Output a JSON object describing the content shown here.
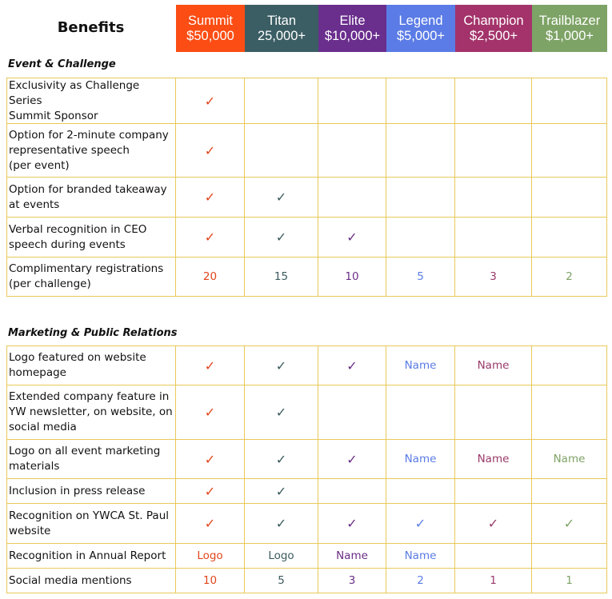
{
  "header": {
    "benefits_label": "Benefits",
    "tiers": [
      {
        "name": "Summit",
        "amount": "$50,000",
        "color": "#fb4d14"
      },
      {
        "name": "Titan",
        "amount": "25,000+",
        "color": "#3b5e64"
      },
      {
        "name": "Elite",
        "amount": "$10,000+",
        "color": "#6a2e8d"
      },
      {
        "name": "Legend",
        "amount": "$5,000+",
        "color": "#5b7ce6"
      },
      {
        "name": "Champion",
        "amount": "$2,500+",
        "color": "#a3336a"
      },
      {
        "name": "Trailblazer",
        "amount": "$1,000+",
        "color": "#7ea366"
      }
    ]
  },
  "text_colors": [
    "#e0451c",
    "#3c5a5e",
    "#6b2e86",
    "#5b7ce6",
    "#9a3a6a",
    "#7ea366"
  ],
  "check_mark": "✓",
  "sections": [
    {
      "title": "Event & Challenge",
      "rows": [
        {
          "label": "Exclusivity as Challenge Series\nSummit Sponsor",
          "cells": [
            "✓",
            "",
            "",
            "",
            "",
            ""
          ]
        },
        {
          "label": "Option for 2-minute company\nrepresentative speech\n(per event)",
          "cells": [
            "✓",
            "",
            "",
            "",
            "",
            ""
          ]
        },
        {
          "label": "Option for branded takeaway\nat events",
          "cells": [
            "✓",
            "✓",
            "",
            "",
            "",
            ""
          ]
        },
        {
          "label": "Verbal recognition in CEO\nspeech during events",
          "cells": [
            "✓",
            "✓",
            "✓",
            "",
            "",
            ""
          ]
        },
        {
          "label": "Complimentary registrations\n(per challenge)",
          "cells": [
            "20",
            "15",
            "10",
            "5",
            "3",
            "2"
          ]
        }
      ]
    },
    {
      "title": "Marketing & Public Relations",
      "rows": [
        {
          "label": "Logo featured on website\nhomepage",
          "cells": [
            "✓",
            "✓",
            "✓",
            "Name",
            "Name",
            ""
          ]
        },
        {
          "label": "Extended company feature in\nYW newsletter, on website, on\nsocial media",
          "cells": [
            "✓",
            "✓",
            "",
            "",
            "",
            ""
          ]
        },
        {
          "label": "Logo on all event marketing\nmaterials",
          "cells": [
            "✓",
            "✓",
            "✓",
            "Name",
            "Name",
            "Name"
          ]
        },
        {
          "label": "Inclusion in press release",
          "cells": [
            "✓",
            "✓",
            "",
            "",
            "",
            ""
          ]
        },
        {
          "label": "Recognition on YWCA St. Paul\nwebsite",
          "cells": [
            "✓",
            "✓",
            "✓",
            "✓",
            "✓",
            "✓"
          ]
        },
        {
          "label": "Recognition in Annual Report",
          "cells": [
            "Logo",
            "Logo",
            "Name",
            "Name",
            "",
            ""
          ]
        },
        {
          "label": "Social media mentions",
          "cells": [
            "10",
            "5",
            "3",
            "2",
            "1",
            "1"
          ]
        }
      ]
    }
  ]
}
